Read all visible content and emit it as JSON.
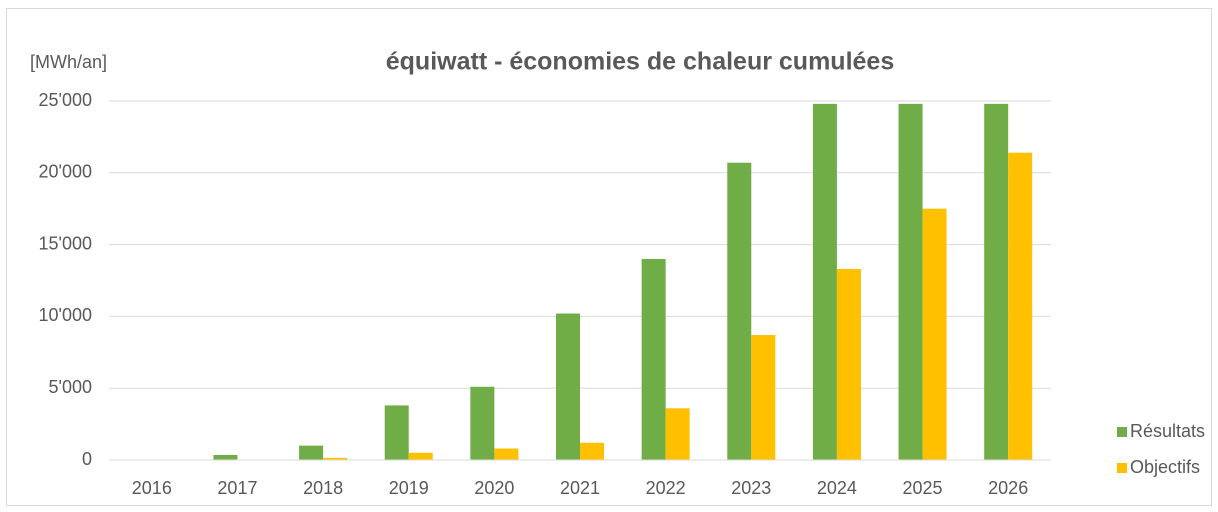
{
  "chart_data": {
    "type": "bar",
    "title": "équiwatt - économies de chaleur cumulées",
    "y_label": "[MWh/an]",
    "categories": [
      "2016",
      "2017",
      "2018",
      "2019",
      "2020",
      "2021",
      "2022",
      "2023",
      "2024",
      "2025",
      "2026"
    ],
    "series": [
      {
        "name": "Résultats",
        "color": "#70ad47",
        "values": [
          0,
          350,
          1000,
          3800,
          5100,
          10200,
          14000,
          20700,
          24800,
          24800,
          24800
        ]
      },
      {
        "name": "Objectifs",
        "color": "#ffc000",
        "values": [
          0,
          0,
          150,
          500,
          800,
          1200,
          3600,
          8700,
          13300,
          17500,
          21400
        ]
      }
    ],
    "ylim": [
      0,
      25000
    ],
    "yticks": [
      0,
      {
        "value": 5000,
        "label": "5'000"
      },
      {
        "value": 10000,
        "label": "10'000"
      },
      {
        "value": 15000,
        "label": "15'000"
      },
      {
        "value": 20000,
        "label": "20'000"
      },
      {
        "value": 25000,
        "label": "25'000"
      }
    ],
    "grid": true,
    "legend": "right"
  }
}
